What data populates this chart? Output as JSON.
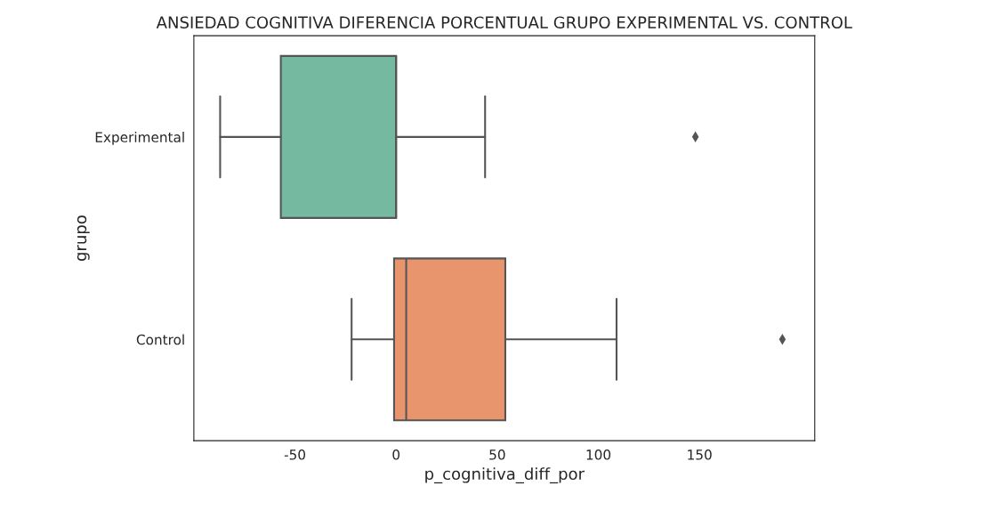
{
  "chart_data": {
    "type": "box",
    "orientation": "horizontal",
    "title": "ANSIEDAD COGNITIVA DIFERENCIA PORCENTUAL GRUPO EXPERIMENTAL VS. CONTROL",
    "xlabel": "p_cognitiva_diff_por",
    "ylabel": "grupo",
    "categories": [
      "Experimental",
      "Control"
    ],
    "colors": [
      "#74b9a0",
      "#e8956d"
    ],
    "boxes": [
      {
        "low": -87,
        "q1": -57,
        "median": 0,
        "q3": 0,
        "high": 44,
        "outliers": [
          148
        ]
      },
      {
        "low": -22,
        "q1": -1,
        "median": 5,
        "q3": 54,
        "high": 109,
        "outliers": [
          191
        ]
      }
    ],
    "xlim": [
      -100,
      207
    ],
    "xticks": [
      -50,
      0,
      50,
      100,
      150
    ],
    "grid": false,
    "marker": "diamond"
  }
}
